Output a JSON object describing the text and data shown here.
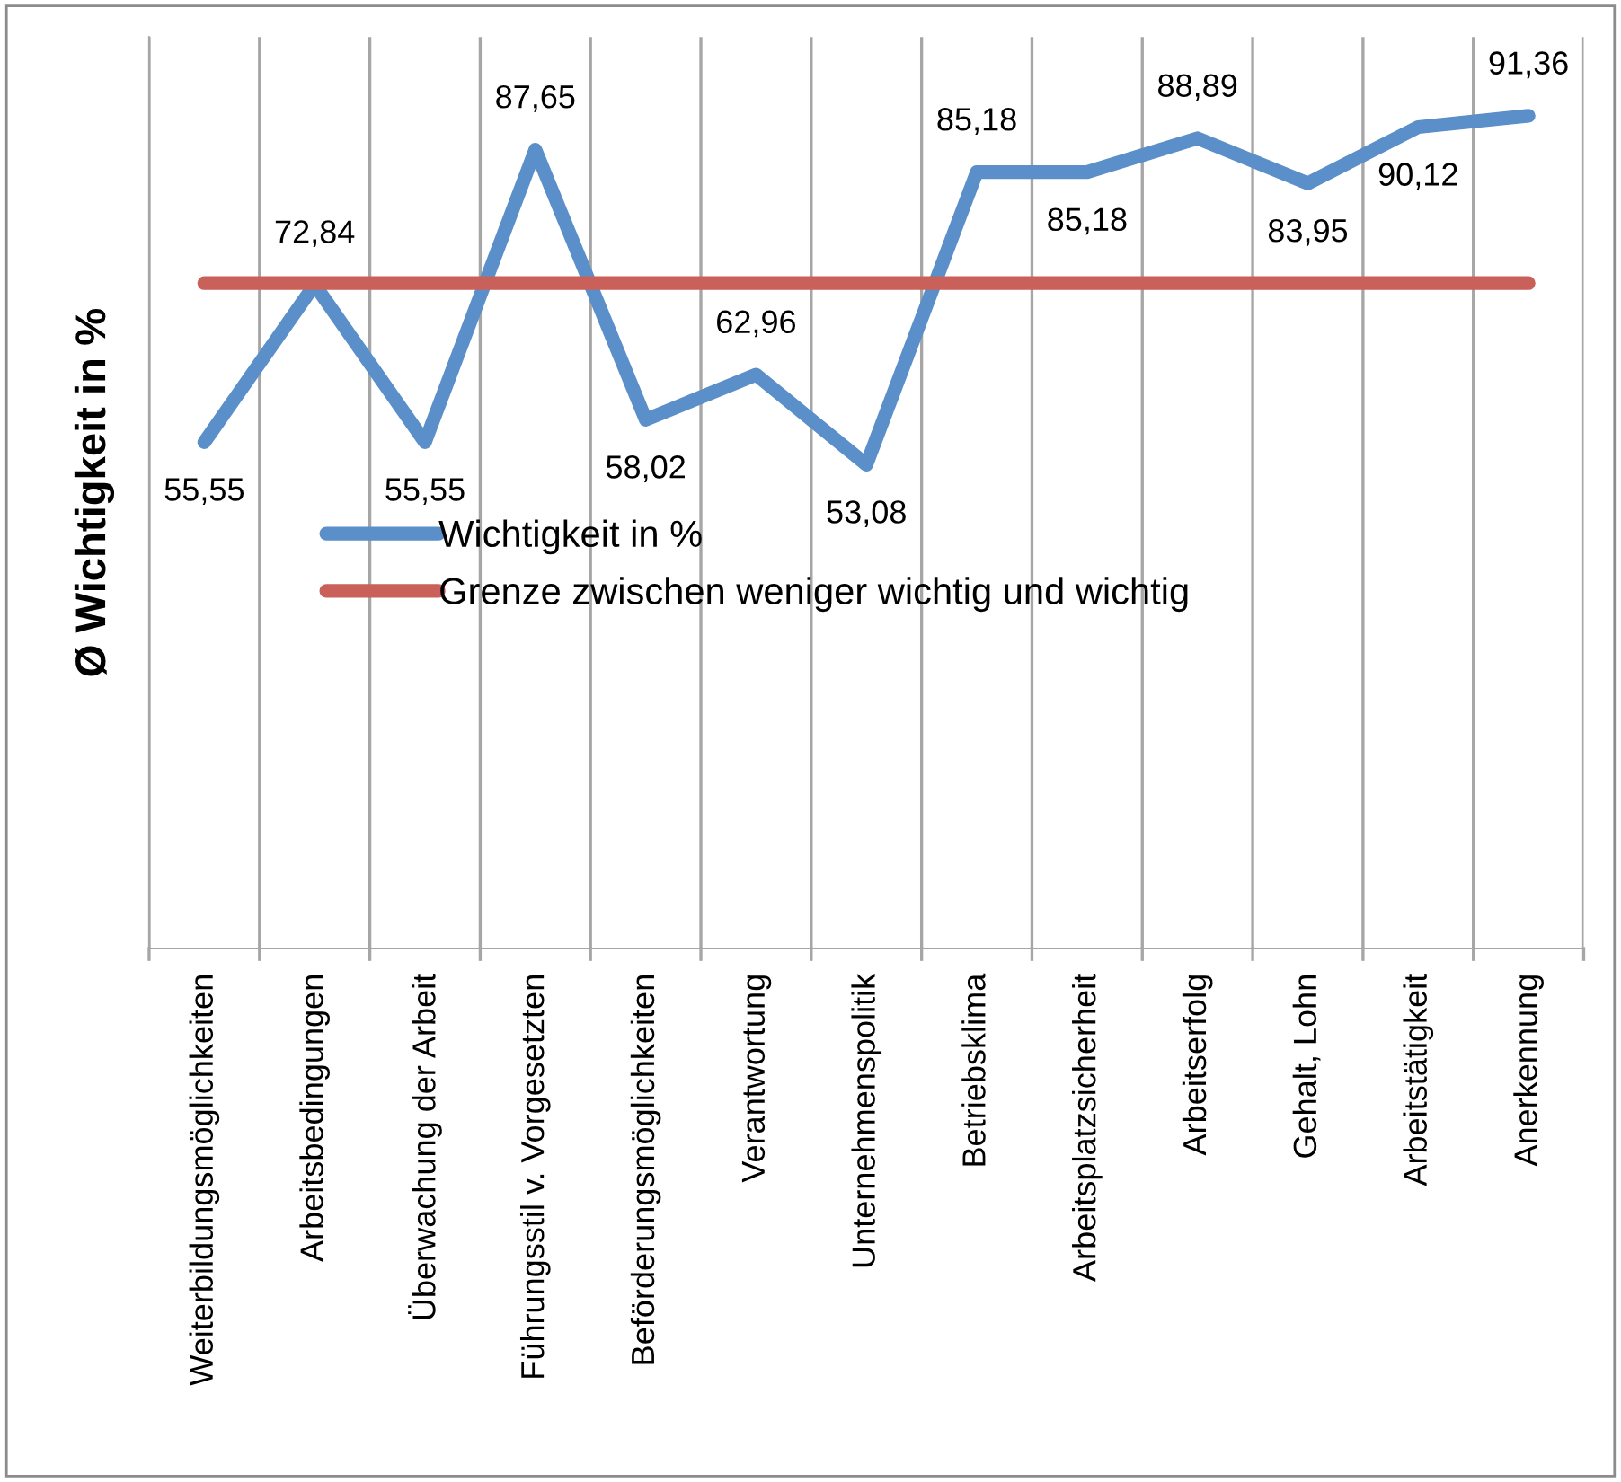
{
  "chart_data": {
    "type": "line",
    "ylabel": "Ø Wichtigkeit in %",
    "categories": [
      "Weiterbildungsmöglichkeiten",
      "Arbeitsbedingungen",
      "Überwachung der Arbeit",
      "Führungsstil v. Vorgesetzten",
      "Beförderungsmöglichkeiten",
      "Verantwortung",
      "Unternehmenspolitik",
      "Betriebsklima",
      "Arbeitsplatzsicherheit",
      "Arbeitserfolg",
      "Gehalt, Lohn",
      "Arbeitstätigkeit",
      "Anerkennung"
    ],
    "series": [
      {
        "name": "Wichtigkeit in %",
        "color": "#5b8fc9",
        "values": [
          55.55,
          72.84,
          55.55,
          87.65,
          58.02,
          62.96,
          53.08,
          85.18,
          85.18,
          88.89,
          83.95,
          90.12,
          91.36
        ],
        "value_labels": [
          "55,55",
          "72,84",
          "55,55",
          "87,65",
          "58,02",
          "62,96",
          "53,08",
          "85,18",
          "85,18",
          "88,89",
          "83,95",
          "90,12",
          "91,36"
        ]
      },
      {
        "name": "Grenze zwischen weniger wichtig und wichtig",
        "color": "#c9605a",
        "values": [
          73,
          73,
          73,
          73,
          73,
          73,
          73,
          73,
          73,
          73,
          73,
          73,
          73
        ]
      }
    ],
    "ylim": [
      0,
      100
    ],
    "tick_labels": "x",
    "grid": "x",
    "legend": "left",
    "marker": "none",
    "line_style": "solid"
  }
}
